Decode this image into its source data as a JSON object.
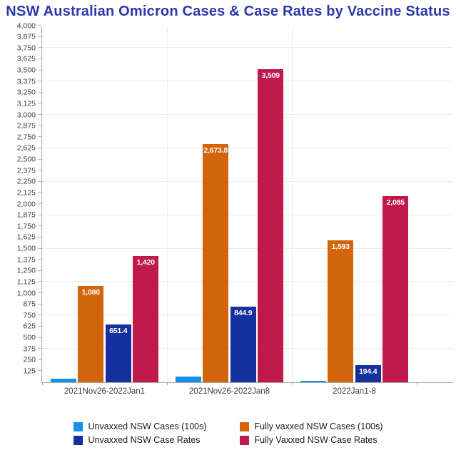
{
  "chart_data": {
    "type": "bar",
    "title": "NSW Australian Omicron Cases & Case Rates by Vaccine Status",
    "categories": [
      "2021Nov26-2022Jan1",
      "2021Nov26-2022Jan8",
      "2022Jan1-8"
    ],
    "series": [
      {
        "name": "Unvaxxed NSW Cases (100s)",
        "color": "#1690ef",
        "values": [
          40,
          65,
          15
        ],
        "labels": [
          "",
          "",
          ""
        ]
      },
      {
        "name": "Fully vaxxed NSW Cases (100s)",
        "color": "#d2650c",
        "values": [
          1080,
          2673.8,
          1593
        ],
        "labels": [
          "1,080",
          "2,673.8",
          "1,593"
        ]
      },
      {
        "name": "Unvaxxed NSW Case Rates",
        "color": "#16309e",
        "values": [
          651.4,
          844.9,
          194.4
        ],
        "labels": [
          "651.4",
          "844.9",
          "194.4"
        ]
      },
      {
        "name": "Fully Vaxxed NSW Case Rates",
        "color": "#bf1a4b",
        "values": [
          1420,
          3509,
          2085
        ],
        "labels": [
          "1,420",
          "3,509",
          "2,085"
        ]
      }
    ],
    "ylim": [
      0,
      4000
    ],
    "ytick_step": 125,
    "gridline_step": 375,
    "grid": true,
    "legend_position": "bottom",
    "title_color": "#2b38a8",
    "axis_color": "#a8a8a8",
    "gridline_color": "#ececec"
  }
}
